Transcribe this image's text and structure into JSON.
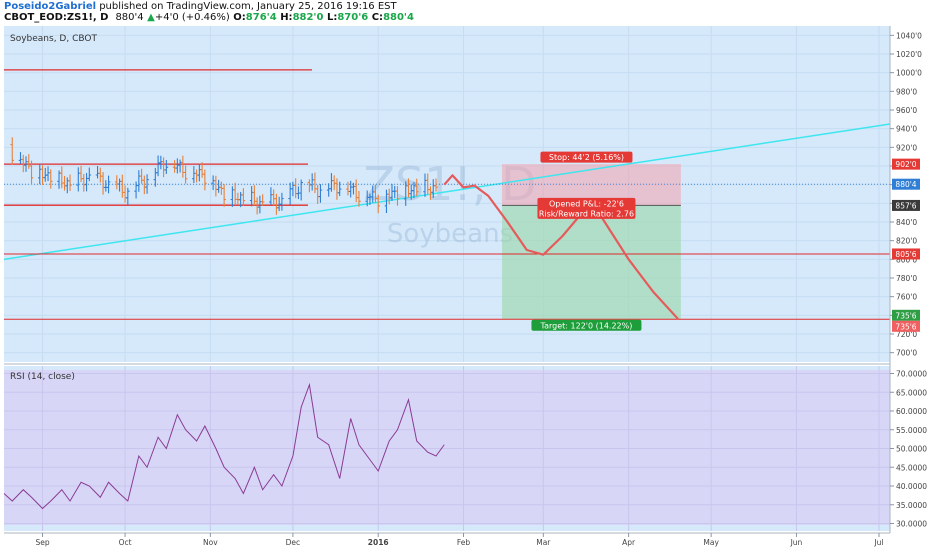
{
  "header": {
    "author": "Poseido2Gabriel",
    "published_text": " published on TradingView.com, January 25, 2016 19:16 EST",
    "symbol": "CBOT_EOD:ZS1!, D",
    "price": "880'4",
    "arrow": "▲",
    "change": "+4'0 (+0.46%)",
    "o_label": "O:",
    "o_value": "876'4",
    "h_label": "H:",
    "h_value": "882'0",
    "l_label": "L:",
    "l_value": "870'6",
    "c_label": "C:",
    "c_value": "880'4"
  },
  "main_panel": {
    "title": "Soybeans, D, CBOT",
    "watermark_symbol": "ZS1!, D",
    "watermark_name": "Soybeans",
    "y_ticks": [
      "1040'0",
      "1020'0",
      "1000'0",
      "980'0",
      "960'0",
      "940'0",
      "920'0",
      "900'0",
      "880'0",
      "860'0",
      "840'0",
      "820'0",
      "800'0",
      "780'0",
      "760'0",
      "740'0",
      "720'0",
      "700'0"
    ],
    "price_labels": [
      {
        "text": "902'0",
        "color": "#e53935"
      },
      {
        "text": "880'4",
        "color": "#2f7fd6"
      },
      {
        "text": "857'6",
        "color": "#3a3a3a"
      },
      {
        "text": "805'6",
        "color": "#e53935"
      },
      {
        "text": "735'6",
        "color": "#2e9e45"
      },
      {
        "text": "735'6",
        "color": "#f06060"
      }
    ],
    "position": {
      "stop_label": "Stop: 44'2 (5.16%)",
      "pnl_label": "Opened P&L: -22'6",
      "rr_label": "Risk/Reward Ratio: 2.76",
      "target_label": "Target: 122'0 (14.22%)",
      "stop_color": "#e53935",
      "target_color": "#1e9e3a"
    }
  },
  "rsi_panel": {
    "title": "RSI (14, close)",
    "y_ticks": [
      "70.0000",
      "65.0000",
      "60.0000",
      "55.0000",
      "50.0000",
      "45.0000",
      "40.0000",
      "35.0000",
      "30.0000"
    ]
  },
  "x_axis": {
    "labels": [
      "Sep",
      "Oct",
      "Nov",
      "Dec",
      "2016",
      "Feb",
      "Mar",
      "Apr",
      "May",
      "Jun",
      "Jul"
    ]
  },
  "colors": {
    "bg": "#d5e9fb",
    "rsi_bg": "#d7d6f7",
    "bar_up": "#2f7fd6",
    "bar_down": "#e8813a",
    "trendline": "#3ee6ef",
    "hline": "#e12b2b",
    "projection": "#e55b5b",
    "rsi_line": "#8a3b93"
  },
  "chart_data": [
    {
      "type": "bar",
      "title": "Soybeans, D, CBOT",
      "y_range": [
        690,
        1050
      ],
      "x_range": [
        "2015-08-18",
        "2016-07-05"
      ],
      "series": [
        {
          "name": "",
          "points": [
            {
              "date": "2015-08-21",
              "value": 915
            },
            {
              "date": "2015-08-28",
              "value": 895
            },
            {
              "date": "2015-09-04",
              "value": 888
            },
            {
              "date": "2015-09-11",
              "value": 880
            },
            {
              "date": "2015-09-18",
              "value": 888
            },
            {
              "date": "2015-09-25",
              "value": 880
            },
            {
              "date": "2015-10-02",
              "value": 872
            },
            {
              "date": "2015-10-09",
              "value": 888
            },
            {
              "date": "2015-10-16",
              "value": 905
            },
            {
              "date": "2015-10-23",
              "value": 895
            },
            {
              "date": "2015-10-30",
              "value": 890
            },
            {
              "date": "2015-11-06",
              "value": 870
            },
            {
              "date": "2015-11-13",
              "value": 865
            },
            {
              "date": "2015-11-20",
              "value": 860
            },
            {
              "date": "2015-11-27",
              "value": 862
            },
            {
              "date": "2015-12-04",
              "value": 880
            },
            {
              "date": "2015-12-11",
              "value": 875
            },
            {
              "date": "2015-12-18",
              "value": 880
            },
            {
              "date": "2015-12-25",
              "value": 870
            },
            {
              "date": "2016-01-01",
              "value": 866
            },
            {
              "date": "2016-01-08",
              "value": 872
            },
            {
              "date": "2016-01-15",
              "value": 876
            },
            {
              "date": "2016-01-22",
              "value": 877
            },
            {
              "date": "2016-01-25",
              "value": 880.5
            }
          ]
        }
      ],
      "horizontal_lines": [
        1003,
        902,
        805.75,
        735.75
      ],
      "channel": {
        "upper": 902,
        "lower": 858
      },
      "trendline": {
        "from": {
          "date": "2015-08-18",
          "value": 800
        },
        "to": {
          "date": "2016-07-05",
          "value": 945
        }
      },
      "projection_path": [
        {
          "date": "2016-01-25",
          "value": 880
        },
        {
          "date": "2016-01-28",
          "value": 890
        },
        {
          "date": "2016-02-01",
          "value": 877
        },
        {
          "date": "2016-02-05",
          "value": 879
        },
        {
          "date": "2016-02-10",
          "value": 868
        },
        {
          "date": "2016-02-17",
          "value": 840
        },
        {
          "date": "2016-02-24",
          "value": 810
        },
        {
          "date": "2016-03-01",
          "value": 805
        },
        {
          "date": "2016-03-08",
          "value": 825
        },
        {
          "date": "2016-03-16",
          "value": 853
        },
        {
          "date": "2016-03-22",
          "value": 846
        },
        {
          "date": "2016-04-01",
          "value": 800
        },
        {
          "date": "2016-04-10",
          "value": 765
        },
        {
          "date": "2016-04-19",
          "value": 736
        }
      ],
      "position": {
        "start": "2016-02-15",
        "end": "2016-04-20",
        "entry": 857.75,
        "stop": 902,
        "target": 735.75
      }
    },
    {
      "type": "line",
      "title": "RSI (14, close)",
      "y_range": [
        28,
        72
      ],
      "series": [
        {
          "name": "",
          "points": [
            {
              "date": "2015-08-18",
              "value": 38
            },
            {
              "date": "2015-08-21",
              "value": 36
            },
            {
              "date": "2015-08-25",
              "value": 39
            },
            {
              "date": "2015-08-28",
              "value": 37
            },
            {
              "date": "2015-09-01",
              "value": 34
            },
            {
              "date": "2015-09-04",
              "value": 36
            },
            {
              "date": "2015-09-08",
              "value": 39
            },
            {
              "date": "2015-09-11",
              "value": 36
            },
            {
              "date": "2015-09-15",
              "value": 41
            },
            {
              "date": "2015-09-18",
              "value": 40
            },
            {
              "date": "2015-09-22",
              "value": 37
            },
            {
              "date": "2015-09-25",
              "value": 41
            },
            {
              "date": "2015-09-29",
              "value": 38
            },
            {
              "date": "2015-10-02",
              "value": 36
            },
            {
              "date": "2015-10-06",
              "value": 48
            },
            {
              "date": "2015-10-09",
              "value": 45
            },
            {
              "date": "2015-10-13",
              "value": 53
            },
            {
              "date": "2015-10-16",
              "value": 50
            },
            {
              "date": "2015-10-20",
              "value": 59
            },
            {
              "date": "2015-10-23",
              "value": 55
            },
            {
              "date": "2015-10-27",
              "value": 52
            },
            {
              "date": "2015-10-30",
              "value": 56
            },
            {
              "date": "2015-11-03",
              "value": 50
            },
            {
              "date": "2015-11-06",
              "value": 45
            },
            {
              "date": "2015-11-10",
              "value": 42
            },
            {
              "date": "2015-11-13",
              "value": 38
            },
            {
              "date": "2015-11-17",
              "value": 45
            },
            {
              "date": "2015-11-20",
              "value": 39
            },
            {
              "date": "2015-11-24",
              "value": 43
            },
            {
              "date": "2015-11-27",
              "value": 40
            },
            {
              "date": "2015-12-01",
              "value": 48
            },
            {
              "date": "2015-12-04",
              "value": 61
            },
            {
              "date": "2015-12-07",
              "value": 67
            },
            {
              "date": "2015-12-10",
              "value": 53
            },
            {
              "date": "2015-12-14",
              "value": 51
            },
            {
              "date": "2015-12-18",
              "value": 42
            },
            {
              "date": "2015-12-22",
              "value": 58
            },
            {
              "date": "2015-12-25",
              "value": 51
            },
            {
              "date": "2015-12-29",
              "value": 47
            },
            {
              "date": "2016-01-01",
              "value": 44
            },
            {
              "date": "2016-01-05",
              "value": 52
            },
            {
              "date": "2016-01-08",
              "value": 55
            },
            {
              "date": "2016-01-12",
              "value": 63
            },
            {
              "date": "2016-01-15",
              "value": 52
            },
            {
              "date": "2016-01-19",
              "value": 49
            },
            {
              "date": "2016-01-22",
              "value": 48
            },
            {
              "date": "2016-01-25",
              "value": 51
            }
          ]
        }
      ]
    }
  ]
}
